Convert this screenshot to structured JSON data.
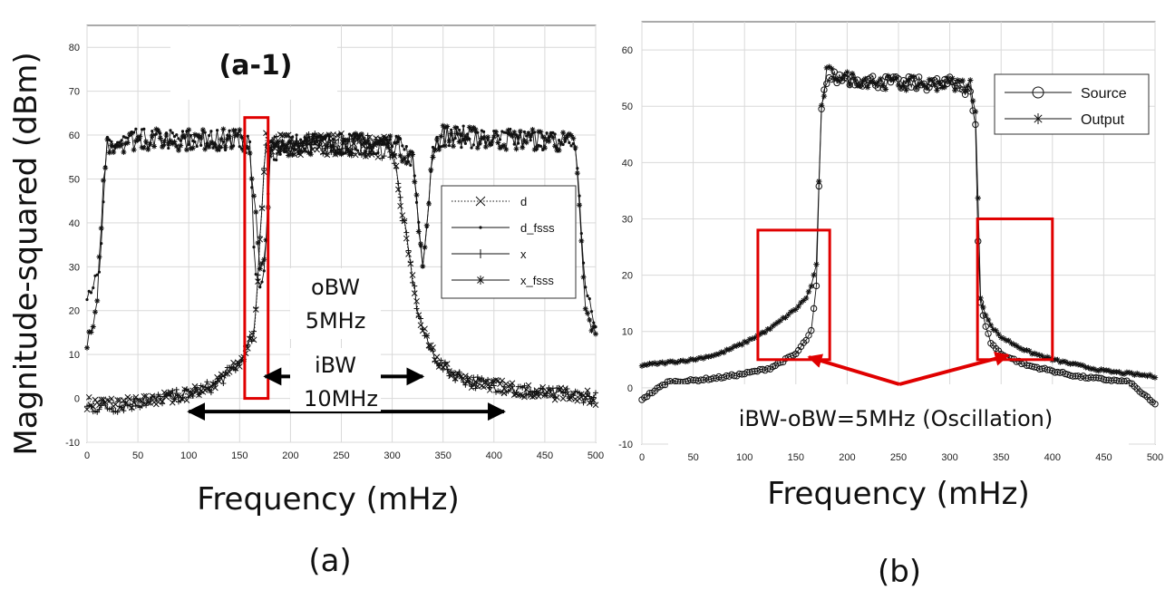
{
  "chart_data": [
    {
      "type": "line",
      "panel_label": "(a)",
      "inset_label": "(a-1)",
      "ylabel": "Magnitude-squared (dBm)",
      "xlabel": "Frequency (mHz)",
      "xlim": [
        0,
        500
      ],
      "ylim": [
        -10,
        85
      ],
      "xticks": [
        0,
        50,
        100,
        150,
        200,
        250,
        300,
        350,
        400,
        450,
        500
      ],
      "yticks": [
        -10,
        0,
        10,
        20,
        30,
        40,
        50,
        60,
        70,
        80
      ],
      "grid": true,
      "legend_position": "right",
      "series": [
        {
          "name": "d",
          "marker": "x",
          "line": "dotted",
          "x": [
            0,
            25,
            50,
            75,
            100,
            125,
            150,
            165,
            175,
            200,
            250,
            300,
            325,
            335,
            350,
            375,
            400,
            425,
            450,
            475,
            500
          ],
          "y": [
            -1,
            -1,
            -1,
            0,
            1,
            3,
            8,
            15,
            58,
            58,
            58,
            57,
            20,
            12,
            7,
            4,
            3,
            2,
            1,
            1,
            0
          ]
        },
        {
          "name": "d_fsss",
          "marker": "dot",
          "line": "solid",
          "x": [
            0,
            12,
            20,
            50,
            100,
            150,
            160,
            165,
            170,
            175,
            180,
            200,
            250,
            300,
            320,
            330,
            340,
            350,
            400,
            450,
            480,
            490,
            500
          ],
          "y": [
            24,
            28,
            58,
            59,
            59,
            59,
            58,
            30,
            24,
            30,
            56,
            58,
            58,
            58,
            55,
            30,
            58,
            60,
            59,
            59,
            58,
            25,
            16
          ]
        },
        {
          "name": "x",
          "marker": "+",
          "line": "solid",
          "x": [
            0,
            25,
            50,
            75,
            100,
            125,
            150,
            165,
            175,
            200,
            250,
            300,
            325,
            335,
            350,
            375,
            400,
            425,
            450,
            475,
            500
          ],
          "y": [
            -2,
            -2,
            -1,
            0,
            1,
            3,
            8,
            15,
            58,
            58,
            58,
            57,
            20,
            12,
            7,
            4,
            3,
            2,
            1,
            1,
            0
          ]
        },
        {
          "name": "x_fsss",
          "marker": "*",
          "line": "solid",
          "x": [
            0,
            5,
            10,
            15,
            20,
            50,
            100,
            150,
            160,
            165,
            170,
            175,
            180,
            200,
            250,
            300,
            320,
            330,
            340,
            350,
            400,
            450,
            480,
            490,
            500
          ],
          "y": [
            13,
            15,
            21,
            46,
            58,
            59,
            59,
            59,
            57,
            44,
            29,
            31,
            56,
            58,
            58,
            58,
            55,
            29,
            57,
            60,
            59,
            59,
            58,
            20,
            14
          ]
        }
      ],
      "annotations": [
        {
          "text": "oBW",
          "value": "5MHz",
          "from": 175,
          "to": 330,
          "y": 5
        },
        {
          "text": "iBW",
          "value": "10MHz",
          "from": 100,
          "to": 410,
          "y": -3
        }
      ],
      "highlight_box": {
        "x": [
          155,
          178
        ],
        "y": [
          0,
          64
        ]
      }
    },
    {
      "type": "line",
      "panel_label": "(b)",
      "xlabel": "Frequency (mHz)",
      "xlim": [
        0,
        500
      ],
      "ylim": [
        -10,
        65
      ],
      "xticks": [
        0,
        50,
        100,
        150,
        200,
        250,
        300,
        350,
        400,
        450,
        500
      ],
      "yticks": [
        -10,
        0,
        10,
        20,
        30,
        40,
        50,
        60
      ],
      "grid": true,
      "legend_position": "top-right",
      "series": [
        {
          "name": "Source",
          "marker": "o",
          "x": [
            0,
            25,
            50,
            75,
            100,
            125,
            150,
            160,
            165,
            170,
            172,
            175,
            180,
            200,
            250,
            300,
            320,
            325,
            328,
            330,
            335,
            340,
            350,
            375,
            400,
            425,
            450,
            475,
            500
          ],
          "y": [
            -2,
            1,
            1.3,
            1.8,
            2.5,
            3.5,
            6,
            8.5,
            10,
            18,
            33,
            49,
            55,
            55,
            54,
            54,
            53,
            46,
            22,
            15,
            11,
            8,
            6,
            4,
            3,
            2,
            1.5,
            1,
            -3
          ]
        },
        {
          "name": "Output",
          "marker": "*",
          "x": [
            0,
            25,
            50,
            75,
            100,
            125,
            150,
            160,
            165,
            170,
            172,
            175,
            180,
            200,
            250,
            300,
            320,
            325,
            328,
            330,
            335,
            340,
            350,
            375,
            400,
            425,
            450,
            475,
            500
          ],
          "y": [
            4,
            4.5,
            5,
            6,
            8,
            10.5,
            14,
            16,
            18,
            22,
            34,
            49,
            56,
            55,
            54,
            54,
            54,
            48,
            31,
            16,
            13,
            11,
            9,
            6.5,
            5,
            4,
            3,
            2.5,
            2
          ]
        }
      ],
      "annotations": [
        {
          "text": "iBW-oBW=5MHz (Oscillation)"
        }
      ],
      "highlight_boxes": [
        {
          "x": [
            113,
            183
          ],
          "y": [
            5,
            28
          ]
        },
        {
          "x": [
            327,
            400
          ],
          "y": [
            5,
            30
          ]
        }
      ]
    }
  ]
}
